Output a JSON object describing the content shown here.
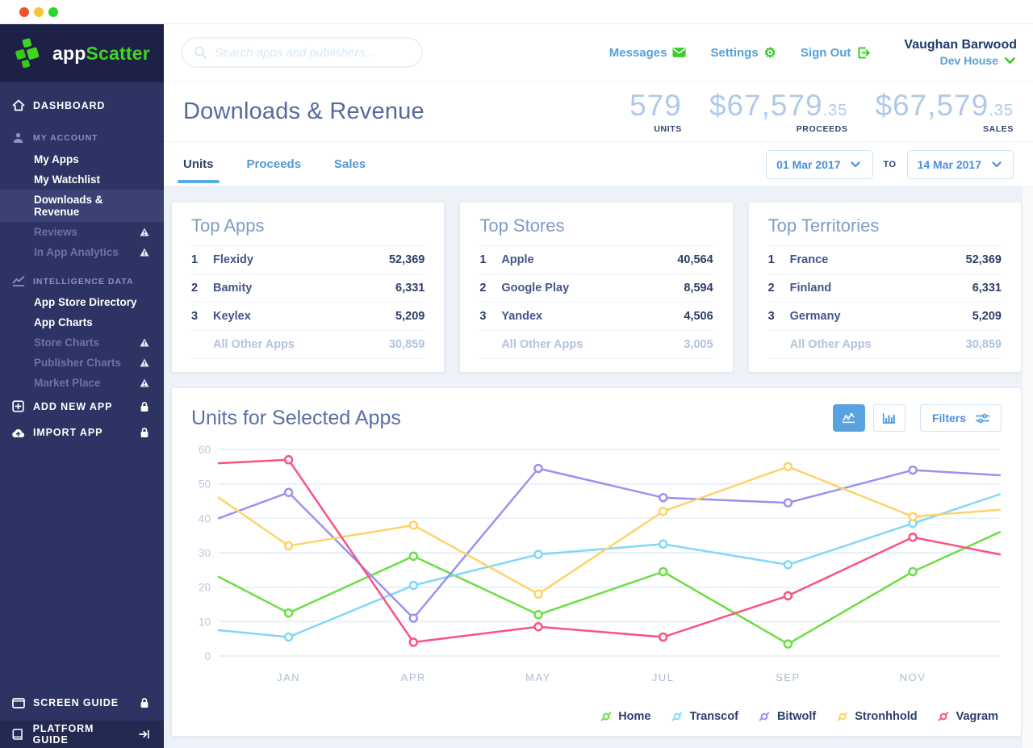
{
  "brand": {
    "word_app": "app",
    "word_scatter": "Scatter"
  },
  "sidebar": {
    "items": [
      {
        "label": "DASHBOARD",
        "icon": "home",
        "type": "top"
      },
      {
        "label": "MY ACCOUNT",
        "icon": "user",
        "type": "section"
      },
      {
        "label": "My Apps",
        "type": "sub"
      },
      {
        "label": "My Watchlist",
        "type": "sub"
      },
      {
        "label": "Downloads & Revenue",
        "type": "sub",
        "active": true
      },
      {
        "label": "Reviews",
        "type": "sub",
        "muted": true,
        "warn": true
      },
      {
        "label": "In App Analytics",
        "type": "sub",
        "muted": true,
        "warn": true
      },
      {
        "label": "INTELLIGENCE DATA",
        "icon": "chart",
        "type": "section"
      },
      {
        "label": "App Store Directory",
        "type": "sub"
      },
      {
        "label": "App Charts",
        "type": "sub"
      },
      {
        "label": "Store Charts",
        "type": "sub",
        "muted": true,
        "warn": true
      },
      {
        "label": "Publisher Charts",
        "type": "sub",
        "muted": true,
        "warn": true
      },
      {
        "label": "Market Place",
        "type": "sub",
        "muted": true,
        "warn": true
      },
      {
        "label": "ADD NEW APP",
        "icon": "plus-square",
        "type": "top",
        "lock": true
      },
      {
        "label": "IMPORT APP",
        "icon": "cloud-upload",
        "type": "top",
        "lock": true
      }
    ],
    "bottom_items": [
      {
        "label": "SCREEN GUIDE",
        "icon": "screen",
        "type": "top",
        "lock": true
      },
      {
        "label": "PLATFORM GUIDE",
        "icon": "book",
        "type": "top",
        "dark": true,
        "trail_icon": "walkthrough"
      }
    ]
  },
  "topbar": {
    "search_placeholder": "Search apps and publishers...",
    "links": [
      {
        "label": "Messages",
        "icon": "envelope"
      },
      {
        "label": "Settings",
        "icon": "gear"
      },
      {
        "label": "Sign Out",
        "icon": "sign-out"
      }
    ],
    "user": {
      "name": "Vaughan Barwood",
      "org": "Dev House"
    }
  },
  "header": {
    "title": "Downloads & Revenue",
    "stats": [
      {
        "value": "579",
        "decimals": "",
        "label": "UNITS"
      },
      {
        "value": "$67,579",
        "decimals": ".35",
        "label": "PROCEEDS"
      },
      {
        "value": "$67,579",
        "decimals": ".35",
        "label": "SALES"
      }
    ]
  },
  "tabs": {
    "items": [
      {
        "label": "Units",
        "active": true
      },
      {
        "label": "Proceeds"
      },
      {
        "label": "Sales"
      }
    ],
    "date_from": "01 Mar 2017",
    "to_label": "TO",
    "date_to": "14 Mar 2017"
  },
  "cards": [
    {
      "title": "Top Apps",
      "rows": [
        {
          "rank": "1",
          "name": "Flexidy",
          "value": "52,369"
        },
        {
          "rank": "2",
          "name": "Bamity",
          "value": "6,331"
        },
        {
          "rank": "3",
          "name": "Keylex",
          "value": "5,209"
        }
      ],
      "other": {
        "name": "All Other Apps",
        "value": "30,859"
      }
    },
    {
      "title": "Top Stores",
      "rows": [
        {
          "rank": "1",
          "name": "Apple",
          "value": "40,564"
        },
        {
          "rank": "2",
          "name": "Google Play",
          "value": "8,594"
        },
        {
          "rank": "3",
          "name": "Yandex",
          "value": "4,506"
        }
      ],
      "other": {
        "name": "All Other Apps",
        "value": "3,005"
      }
    },
    {
      "title": "Top Territories",
      "rows": [
        {
          "rank": "1",
          "name": "France",
          "value": "52,369"
        },
        {
          "rank": "2",
          "name": "Finland",
          "value": "6,331"
        },
        {
          "rank": "3",
          "name": "Germany",
          "value": "5,209"
        }
      ],
      "other": {
        "name": "All Other Apps",
        "value": "30,859"
      }
    }
  ],
  "chart_card": {
    "title": "Units for Selected Apps",
    "filters_label": "Filters"
  },
  "chart_data": {
    "type": "line",
    "title": "Units for Selected Apps",
    "x_ticks": [
      "JAN",
      "APR",
      "MAY",
      "JUL",
      "SEP",
      "NOV"
    ],
    "ylim": [
      0,
      60
    ],
    "yticks": [
      0,
      10,
      20,
      30,
      40,
      50,
      60
    ],
    "grid": "horizontal",
    "legend_position": "bottom-right",
    "marker": "open-circle",
    "series": [
      {
        "name": "Home",
        "color": "#6ddd44",
        "edge_start": 23,
        "values": [
          12.5,
          29,
          12,
          24.5,
          3.5,
          24.5
        ],
        "edge_end": 36
      },
      {
        "name": "Transcof",
        "color": "#82d8f7",
        "edge_start": 7.5,
        "values": [
          5.5,
          20.5,
          29.5,
          32.5,
          26.5,
          38.5
        ],
        "edge_end": 47
      },
      {
        "name": "Bitwolf",
        "color": "#9b91f2",
        "edge_start": 40,
        "values": [
          47.5,
          11,
          54.5,
          46,
          44.5,
          54
        ],
        "edge_end": 52.5
      },
      {
        "name": "Stronhhold",
        "color": "#fdd36a",
        "edge_start": 46,
        "values": [
          32,
          38,
          18,
          42,
          55,
          40.5
        ],
        "edge_end": 42.5
      },
      {
        "name": "Vagram",
        "color": "#fa5380",
        "edge_start": 56,
        "values": [
          57,
          4,
          8.5,
          5.5,
          17.5,
          34.5
        ],
        "edge_end": 29.5
      }
    ]
  },
  "colors": {
    "accent_green": "#3ecb2f",
    "link_blue": "#57a0d8",
    "sidebar_bg": "#2d3363",
    "sidebar_dark": "#1d2147",
    "active_tab_underline": "#58ace9",
    "page_bg": "#edf2f8"
  }
}
